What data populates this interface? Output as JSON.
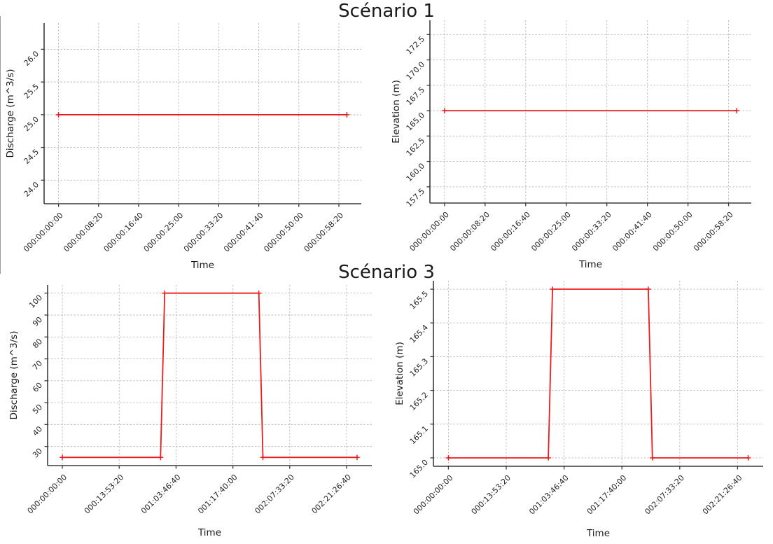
{
  "figures": [
    {
      "title": "Scénario 1"
    },
    {
      "title": "Scénario 3"
    }
  ],
  "colors": {
    "line": "#ed1c1c",
    "grid": "#b5b5b5",
    "axis": "#3a3a3a",
    "text": "#262626"
  },
  "chart_data": [
    {
      "figure": "Scénario 1",
      "position": "top-left",
      "type": "line",
      "title": "",
      "xlabel": "Time",
      "ylabel": "Discharge (m^3/s)",
      "grid": true,
      "legend": "none",
      "line_color": "#ed1c1c",
      "x_tick_labels": [
        "000:00:00:00",
        "000:00:08:20",
        "000:00:16:40",
        "000:00:25:00",
        "000:00:33:20",
        "000:00:41:40",
        "000:00:50:00",
        "000:00:58:20"
      ],
      "x_tick_values": [
        0,
        500,
        1000,
        1500,
        2000,
        2500,
        3000,
        3500
      ],
      "y_tick_labels": [
        "24.0",
        "24.5",
        "25.0",
        "25.5",
        "26.0"
      ],
      "y_tick_values": [
        24.0,
        24.5,
        25.0,
        25.5,
        26.0
      ],
      "xlim": [
        -180,
        3780
      ],
      "ylim": [
        23.64,
        26.4
      ],
      "series": [
        {
          "name": "discharge",
          "x": [
            0,
            3600
          ],
          "y": [
            25.0,
            25.0
          ]
        }
      ]
    },
    {
      "figure": "Scénario 1",
      "position": "top-right",
      "type": "line",
      "title": "",
      "xlabel": "Time",
      "ylabel": "Elevation (m)",
      "grid": true,
      "legend": "none",
      "line_color": "#ed1c1c",
      "x_tick_labels": [
        "000:00:00:00",
        "000:00:08:20",
        "000:00:16:40",
        "000:00:25:00",
        "000:00:33:20",
        "000:00:41:40",
        "000:00:50:00",
        "000:00:58:20"
      ],
      "x_tick_values": [
        0,
        500,
        1000,
        1500,
        2000,
        2500,
        3000,
        3500
      ],
      "y_tick_labels": [
        "157.5",
        "160.0",
        "162.5",
        "165.0",
        "167.5",
        "170.0",
        "172.5"
      ],
      "y_tick_values": [
        157.5,
        160.0,
        162.5,
        165.0,
        167.5,
        170.0,
        172.5
      ],
      "xlim": [
        -180,
        3780
      ],
      "ylim": [
        155.9,
        173.9
      ],
      "series": [
        {
          "name": "elevation",
          "x": [
            0,
            3600
          ],
          "y": [
            165.0,
            165.0
          ]
        }
      ]
    },
    {
      "figure": "Scénario 3",
      "position": "bottom-left",
      "type": "line",
      "title": "",
      "xlabel": "Time",
      "ylabel": "Discharge (m^3/s)",
      "grid": true,
      "legend": "none",
      "line_color": "#ed1c1c",
      "x_tick_labels": [
        "000:00:00:00",
        "000:13:53:20",
        "001:03:46:40",
        "001:17:40:00",
        "002:07:33:20",
        "002:21:26:40"
      ],
      "x_tick_values": [
        0,
        50000,
        100000,
        150000,
        200000,
        250000
      ],
      "y_tick_labels": [
        "30",
        "40",
        "50",
        "60",
        "70",
        "80",
        "90",
        "100"
      ],
      "y_tick_values": [
        30,
        40,
        50,
        60,
        70,
        80,
        90,
        100
      ],
      "xlim": [
        -12960,
        272160
      ],
      "ylim": [
        21.25,
        103.75
      ],
      "series": [
        {
          "name": "discharge",
          "x": [
            0,
            86400,
            90000,
            172800,
            176400,
            259200
          ],
          "y": [
            25,
            25,
            100,
            100,
            25,
            25
          ]
        }
      ]
    },
    {
      "figure": "Scénario 3",
      "position": "bottom-right",
      "type": "line",
      "title": "",
      "xlabel": "Time",
      "ylabel": "Elevation (m)",
      "grid": true,
      "legend": "none",
      "line_color": "#ed1c1c",
      "x_tick_labels": [
        "000:00:00:00",
        "000:13:53:20",
        "001:03:46:40",
        "001:17:40:00",
        "002:07:33:20",
        "002:21:26:40"
      ],
      "x_tick_values": [
        0,
        50000,
        100000,
        150000,
        200000,
        250000
      ],
      "y_tick_labels": [
        "165.0",
        "165.1",
        "165.2",
        "165.3",
        "165.4",
        "165.5"
      ],
      "y_tick_values": [
        165.0,
        165.1,
        165.2,
        165.3,
        165.4,
        165.5
      ],
      "xlim": [
        -12960,
        272160
      ],
      "ylim": [
        164.975,
        165.525
      ],
      "series": [
        {
          "name": "elevation",
          "x": [
            0,
            86400,
            90000,
            172800,
            176400,
            259200
          ],
          "y": [
            165.0,
            165.0,
            165.5,
            165.5,
            165.0,
            165.0
          ]
        }
      ]
    }
  ]
}
